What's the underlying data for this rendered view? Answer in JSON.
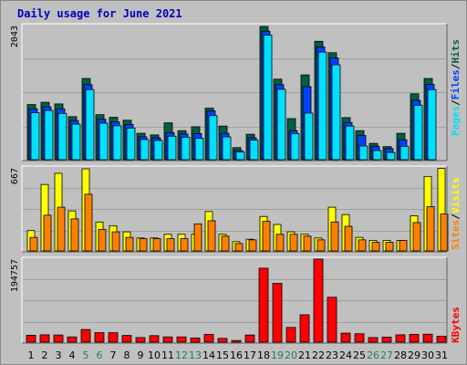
{
  "title": "Daily usage for June 2021",
  "colors": {
    "hits": "#006040",
    "files": "#0040ff",
    "pages": "#00e0ff",
    "visits": "#ffff00",
    "sites": "#ff8000",
    "kbytes": "#ff0000",
    "weekend_day": "#208060",
    "weekday": "#000000",
    "title": "#0000c0"
  },
  "chart_data": [
    {
      "type": "bar",
      "categories": [
        "1",
        "2",
        "3",
        "4",
        "5",
        "6",
        "7",
        "8",
        "9",
        "10",
        "11",
        "12",
        "13",
        "14",
        "15",
        "16",
        "17",
        "18",
        "19",
        "20",
        "21",
        "22",
        "23",
        "24",
        "25",
        "26",
        "27",
        "28",
        "29",
        "30",
        "31"
      ],
      "weekend_days": [
        "5",
        "6",
        "12",
        "13",
        "19",
        "20",
        "26",
        "27"
      ],
      "axis_max_label": "2043",
      "ylim": [
        0,
        2043
      ],
      "legend": [
        "Pages",
        "Files",
        "Hits"
      ],
      "series": [
        {
          "name": "Hits",
          "values": [
            845,
            880,
            855,
            660,
            1245,
            690,
            650,
            605,
            405,
            380,
            565,
            445,
            505,
            790,
            515,
            185,
            390,
            2043,
            1235,
            630,
            1300,
            1815,
            1640,
            645,
            445,
            250,
            200,
            405,
            1010,
            1245,
            0
          ]
        },
        {
          "name": "Files",
          "values": [
            780,
            810,
            780,
            600,
            1150,
            620,
            580,
            540,
            350,
            335,
            415,
            395,
            400,
            750,
            405,
            140,
            335,
            1970,
            1150,
            445,
            1120,
            1730,
            1560,
            570,
            370,
            205,
            170,
            305,
            910,
            1155,
            0
          ]
        },
        {
          "name": "Pages",
          "values": [
            720,
            755,
            710,
            545,
            1075,
            560,
            520,
            485,
            310,
            295,
            360,
            345,
            330,
            675,
            350,
            120,
            300,
            1910,
            1080,
            400,
            715,
            1650,
            1455,
            515,
            210,
            140,
            110,
            205,
            835,
            1075,
            0
          ]
        }
      ]
    },
    {
      "type": "bar",
      "categories": [
        "1",
        "2",
        "3",
        "4",
        "5",
        "6",
        "7",
        "8",
        "9",
        "10",
        "11",
        "12",
        "13",
        "14",
        "15",
        "16",
        "17",
        "18",
        "19",
        "20",
        "21",
        "22",
        "23",
        "24",
        "25",
        "26",
        "27",
        "28",
        "29",
        "30",
        "31"
      ],
      "axis_max_label": "667",
      "ylim": [
        0,
        667
      ],
      "legend": [
        "Sites",
        "Visits"
      ],
      "series": [
        {
          "name": "Visits",
          "values": [
            165,
            540,
            630,
            325,
            667,
            235,
            205,
            155,
            105,
            105,
            135,
            135,
            135,
            320,
            135,
            75,
            95,
            280,
            215,
            155,
            135,
            105,
            355,
            295,
            110,
            85,
            85,
            85,
            285,
            605,
            670
          ]
        },
        {
          "name": "Sites",
          "values": [
            110,
            290,
            355,
            260,
            460,
            175,
            155,
            110,
            100,
            100,
            100,
            100,
            220,
            245,
            120,
            60,
            90,
            240,
            135,
            135,
            120,
            90,
            235,
            200,
            90,
            70,
            70,
            85,
            230,
            360,
            300
          ]
        }
      ]
    },
    {
      "type": "bar",
      "categories": [
        "1",
        "2",
        "3",
        "4",
        "5",
        "6",
        "7",
        "8",
        "9",
        "10",
        "11",
        "12",
        "13",
        "14",
        "15",
        "16",
        "17",
        "18",
        "19",
        "20",
        "21",
        "22",
        "23",
        "24",
        "25",
        "26",
        "27",
        "28",
        "29",
        "30",
        "31"
      ],
      "axis_max_label": "194757",
      "ylim": [
        0,
        194757
      ],
      "legend": [
        "KBytes"
      ],
      "series": [
        {
          "name": "KBytes",
          "values": [
            16500,
            17500,
            17000,
            12500,
            30000,
            22500,
            22500,
            16000,
            11000,
            15500,
            12500,
            12500,
            10000,
            18500,
            9000,
            4000,
            17000,
            175500,
            139500,
            35000,
            65000,
            197000,
            106500,
            21500,
            20000,
            11000,
            12000,
            17500,
            18500,
            19000,
            14000
          ]
        }
      ]
    }
  ]
}
